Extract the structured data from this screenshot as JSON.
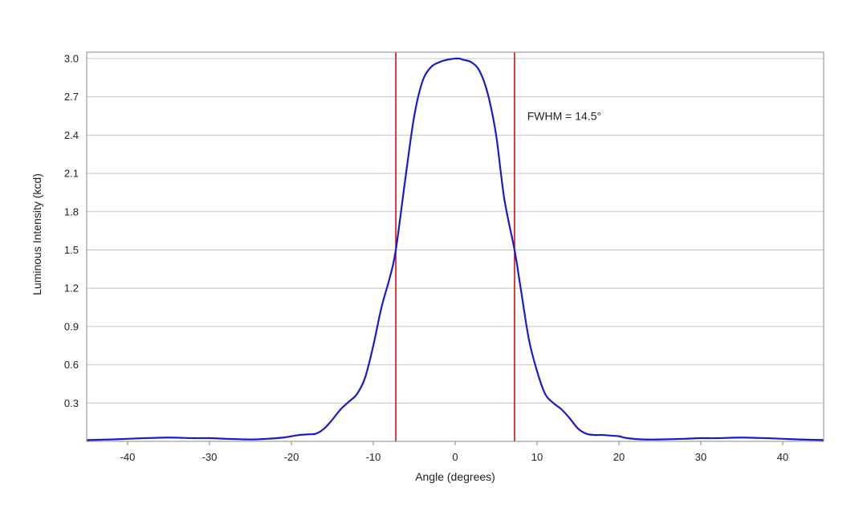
{
  "chart_data": {
    "type": "line",
    "title": "",
    "xlabel": "Angle (degrees)",
    "ylabel": "Luminous Intensity (kcd)",
    "xlim": [
      -45,
      45
    ],
    "ylim": [
      0,
      3.05
    ],
    "xticks": [
      -40,
      -30,
      -20,
      -10,
      0,
      10,
      20,
      30,
      40
    ],
    "xtick_labels": [
      "-40",
      "-30",
      "-20",
      "-10",
      "0",
      "10",
      "20",
      "30",
      "40"
    ],
    "yticks": [
      0.3,
      0.6,
      0.9,
      1.2,
      1.5,
      1.8,
      2.1,
      2.4,
      2.7,
      3.0
    ],
    "ytick_labels": [
      "0.3",
      "0.6",
      "0.9",
      "1.2",
      "1.5",
      "1.8",
      "2.1",
      "2.4",
      "2.7",
      "3.0"
    ],
    "grid": "horizontal",
    "legend": "none",
    "series": [
      {
        "color": "#1a1acc",
        "x": [
          -45,
          -42,
          -40,
          -38,
          -35,
          -32,
          -30,
          -28,
          -25,
          -23,
          -21,
          -20,
          -19,
          -18,
          -17,
          -16,
          -15,
          -14,
          -13,
          -12,
          -11,
          -10,
          -9,
          -8,
          -7.25,
          -6,
          -5,
          -4,
          -3,
          -2,
          -1,
          0,
          0.5,
          1,
          2,
          3,
          4,
          5,
          6,
          7.25,
          8,
          9,
          10,
          11,
          12,
          13,
          14,
          15,
          16,
          17,
          18,
          19,
          20,
          21,
          23,
          25,
          28,
          30,
          32,
          35,
          38,
          40,
          42,
          45
        ],
        "y": [
          0.01,
          0.015,
          0.02,
          0.025,
          0.03,
          0.025,
          0.025,
          0.02,
          0.015,
          0.02,
          0.03,
          0.04,
          0.05,
          0.055,
          0.06,
          0.1,
          0.17,
          0.25,
          0.31,
          0.37,
          0.5,
          0.75,
          1.05,
          1.28,
          1.5,
          2.1,
          2.55,
          2.82,
          2.93,
          2.97,
          2.99,
          3.0,
          3.0,
          2.99,
          2.97,
          2.9,
          2.72,
          2.4,
          1.9,
          1.5,
          1.2,
          0.8,
          0.55,
          0.37,
          0.3,
          0.25,
          0.18,
          0.1,
          0.06,
          0.05,
          0.05,
          0.045,
          0.04,
          0.025,
          0.015,
          0.015,
          0.02,
          0.025,
          0.025,
          0.03,
          0.025,
          0.02,
          0.015,
          0.01
        ]
      }
    ],
    "vlines": [
      {
        "x": -7.25,
        "color": "#cc1111"
      },
      {
        "x": 7.25,
        "color": "#cc1111"
      }
    ],
    "annotations": [
      {
        "text": "FWHM = 14.5°",
        "x": 8.8,
        "y": 2.52
      }
    ]
  }
}
